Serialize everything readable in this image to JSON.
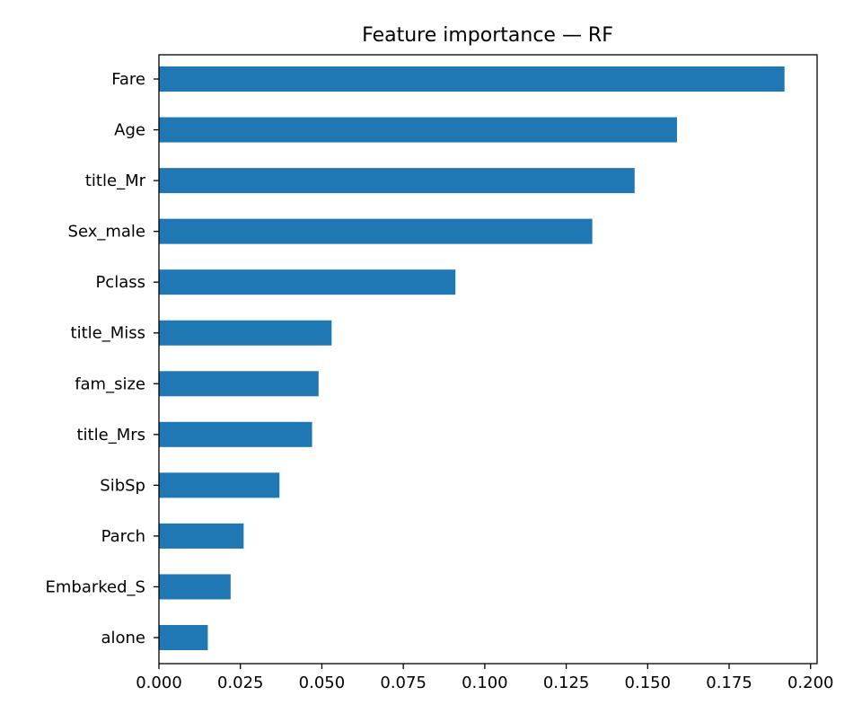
{
  "chart_data": {
    "type": "bar",
    "orientation": "horizontal",
    "title": "Feature importance — RF",
    "xlabel": "",
    "ylabel": "",
    "categories": [
      "Fare",
      "Age",
      "title_Mr",
      "Sex_male",
      "Pclass",
      "title_Miss",
      "fam_size",
      "title_Mrs",
      "SibSp",
      "Parch",
      "Embarked_S",
      "alone"
    ],
    "values": [
      0.192,
      0.159,
      0.146,
      0.133,
      0.091,
      0.053,
      0.049,
      0.047,
      0.037,
      0.026,
      0.022,
      0.015
    ],
    "xlim": [
      0.0,
      0.202
    ],
    "xticks": [
      "0.000",
      "0.025",
      "0.050",
      "0.075",
      "0.100",
      "0.125",
      "0.150",
      "0.175",
      "0.200"
    ],
    "grid": false,
    "legend": "none",
    "bar_color": "#1f77b4"
  }
}
